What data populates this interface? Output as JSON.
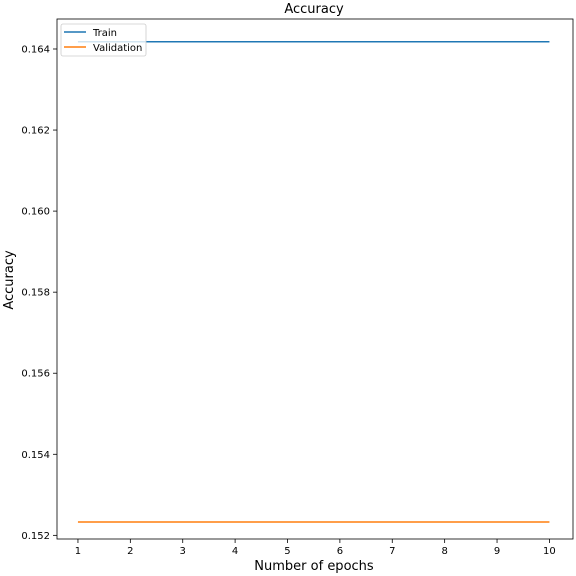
{
  "chart_data": {
    "type": "line",
    "title": "Accuracy",
    "xlabel": "Number of epochs",
    "ylabel": "Accuracy",
    "x": [
      1,
      2,
      3,
      4,
      5,
      6,
      7,
      8,
      9,
      10
    ],
    "xlim": [
      0.6,
      10.45
    ],
    "ylim": [
      0.15191,
      0.16474
    ],
    "x_ticks": [
      1,
      2,
      3,
      4,
      5,
      6,
      7,
      8,
      9,
      10
    ],
    "y_ticks": [
      0.152,
      0.154,
      0.156,
      0.158,
      0.16,
      0.162,
      0.164
    ],
    "y_tick_labels": [
      "0.152",
      "0.154",
      "0.156",
      "0.158",
      "0.160",
      "0.162",
      "0.164"
    ],
    "grid": false,
    "legend_position": "top-left",
    "series": [
      {
        "name": "Train",
        "color": "#1f77b4",
        "values": [
          0.16418,
          0.16418,
          0.16418,
          0.16418,
          0.16418,
          0.16418,
          0.16418,
          0.16418,
          0.16418,
          0.16418
        ]
      },
      {
        "name": "Validation",
        "color": "#ff7f0e",
        "values": [
          0.15233,
          0.15233,
          0.15233,
          0.15233,
          0.15233,
          0.15233,
          0.15233,
          0.15233,
          0.15233,
          0.15233
        ]
      }
    ]
  }
}
